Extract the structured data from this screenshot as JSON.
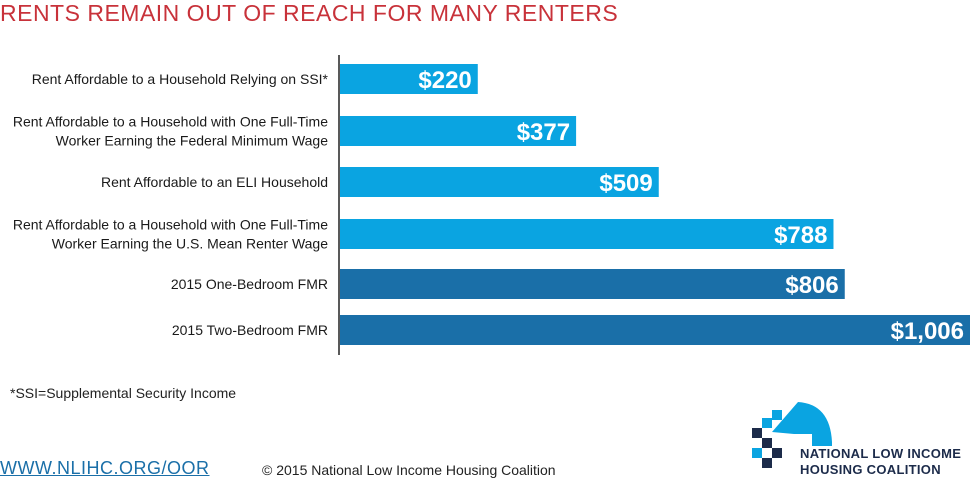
{
  "header": {
    "title": "RENTS REMAIN OUT OF REACH FOR MANY RENTERS"
  },
  "chart_data": {
    "type": "bar",
    "orientation": "horizontal",
    "title": "RENTS REMAIN OUT OF REACH FOR MANY RENTERS",
    "categories": [
      [
        "Rent Affordable to a Household Relying on SSI*"
      ],
      [
        "Rent Affordable to a Household with One Full-Time",
        "Worker Earning the Federal Minimum Wage"
      ],
      [
        "Rent Affordable to an ELI Household"
      ],
      [
        "Rent Affordable to a Household with One Full-Time",
        "Worker Earning the U.S. Mean Renter Wage"
      ],
      [
        "2015 One-Bedroom FMR"
      ],
      [
        "2015 Two-Bedroom FMR"
      ]
    ],
    "values": [
      220,
      377,
      509,
      788,
      806,
      1006
    ],
    "value_labels": [
      "$220",
      "$377",
      "$509",
      "$788",
      "$806",
      "$1,006"
    ],
    "bar_colors": [
      "#0aa4e1",
      "#0aa4e1",
      "#0aa4e1",
      "#0aa4e1",
      "#1a6fa8",
      "#1a6fa8"
    ],
    "xlim": [
      0,
      1006
    ],
    "grid": false,
    "legend": "none"
  },
  "footer": {
    "footnote": "*SSI=Supplemental Security Income",
    "url": "WWW.NLIHC.ORG/OOR",
    "copyright": "© 2015 National Low Income Housing Coalition",
    "logo_line1": "NATIONAL LOW INCOME",
    "logo_line2": "HOUSING COALITION"
  }
}
